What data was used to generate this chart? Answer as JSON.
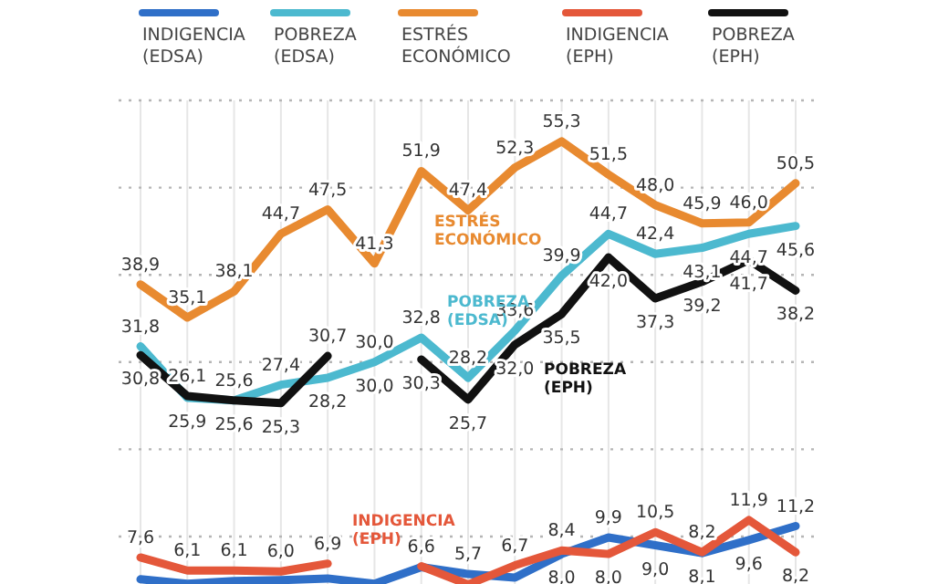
{
  "chart_data": {
    "type": "line",
    "categories": [
      null,
      null,
      null,
      null,
      null,
      null,
      null,
      null,
      null,
      null,
      null,
      null,
      null,
      null,
      null
    ],
    "series": [
      {
        "name": "INDIGENCIA (EDSA)",
        "color": "#2f6fc8",
        "values": [
          5.1,
          4.6,
          4.9,
          5.0,
          5.2,
          4.6,
          6.5,
          5.7,
          5.3,
          8.0,
          9.9,
          9.0,
          8.1,
          9.6,
          11.2
        ],
        "value_labels": [
          null,
          null,
          null,
          null,
          null,
          null,
          null,
          "5,7",
          null,
          "8,0",
          "9,9",
          "9,0",
          "8,1",
          "9,6",
          "11,2"
        ]
      },
      {
        "name": "POBREZA (EDSA)",
        "color": "#4cb9cf",
        "values": [
          31.8,
          25.9,
          25.6,
          27.4,
          28.2,
          30.0,
          32.8,
          28.2,
          33.6,
          39.9,
          44.7,
          42.4,
          43.1,
          44.7,
          45.6
        ],
        "value_labels": [
          "31,8",
          "25,9",
          "25,6",
          "27,4",
          "28,2",
          "30,0",
          "32,8",
          "28,2",
          "33,6",
          "39,9",
          "44,7",
          "42,4",
          "43,1",
          "44,7",
          "45,6"
        ]
      },
      {
        "name": "ESTRÉS ECONÓMICO",
        "color": "#e88a30",
        "values": [
          38.9,
          35.1,
          38.1,
          44.7,
          47.5,
          41.3,
          51.9,
          47.4,
          52.3,
          55.3,
          51.5,
          48.0,
          45.9,
          46.0,
          50.5
        ],
        "value_labels": [
          "38,9",
          "35,1",
          "38,1",
          "44,7",
          "47,5",
          "41,3",
          "51,9",
          "47,4",
          "52,3",
          "55,3",
          "51,5",
          "48,0",
          "45,9",
          "46,0",
          "50,5"
        ]
      },
      {
        "name": "INDIGENCIA (EPH)",
        "color": "#e4573a",
        "values": [
          7.6,
          6.1,
          6.1,
          6.0,
          6.9,
          null,
          6.6,
          4.5,
          6.7,
          8.4,
          8.0,
          10.5,
          8.2,
          11.9,
          8.2
        ],
        "value_labels": [
          "7,6",
          "6,1",
          "6,1",
          "6,0",
          "6,9",
          null,
          "6,6",
          null,
          "6,7",
          "8,4",
          "8,0",
          "10,5",
          "8,2",
          "11,9",
          "8,2"
        ]
      },
      {
        "name": "POBREZA (EPH)",
        "color": "#111111",
        "values": [
          30.8,
          26.1,
          25.6,
          25.3,
          30.7,
          null,
          30.3,
          25.7,
          32.0,
          35.5,
          42.0,
          37.3,
          39.2,
          41.7,
          38.2
        ],
        "value_labels": [
          "30,8",
          "26,1",
          "25,6",
          "25,3",
          "30,7",
          null,
          "30,3",
          "25,7",
          "32,0",
          "35,5",
          "42,0",
          "37,3",
          "39,2",
          "41,7",
          "38,2"
        ]
      }
    ],
    "annotations": [
      "30,0"
    ],
    "yticks": [
      {
        "value": 10,
        "label": null
      },
      {
        "value": 20,
        "label": null
      },
      {
        "value": 30,
        "label": null
      },
      {
        "value": 40,
        "label": null
      },
      {
        "value": 50,
        "label": null
      },
      {
        "value": 60,
        "label": null
      }
    ],
    "grid": true,
    "legend": "top"
  }
}
